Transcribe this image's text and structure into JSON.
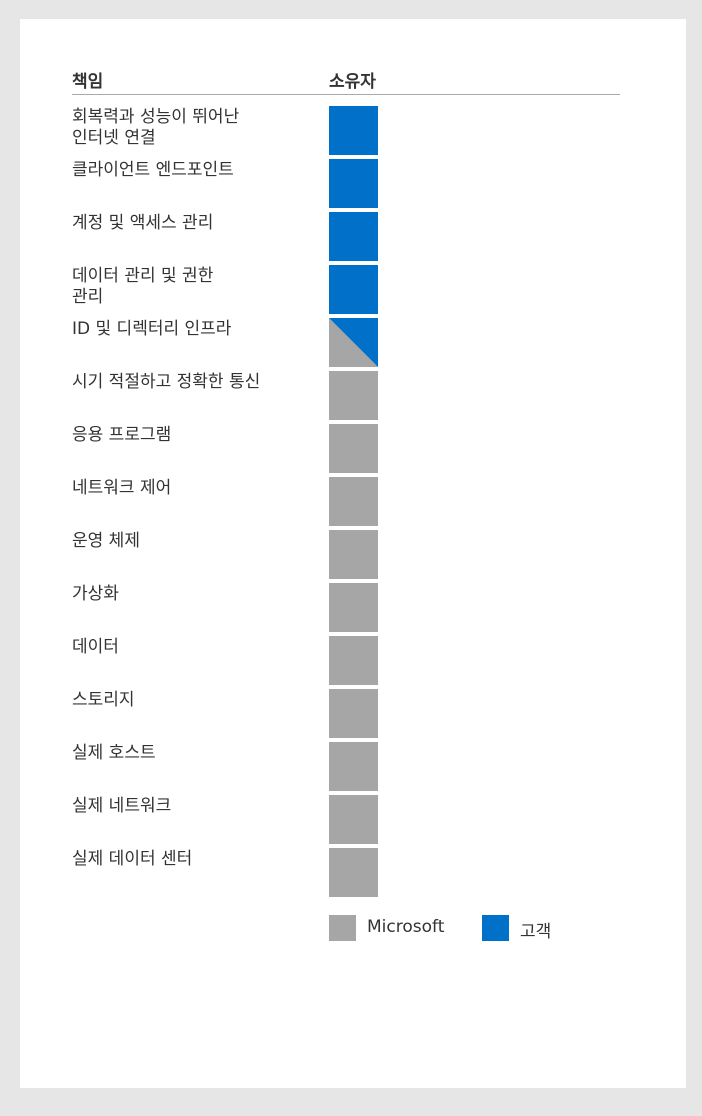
{
  "header": {
    "responsibility": "책임",
    "owner": "소유자"
  },
  "colors": {
    "microsoft": "#a6a6a6",
    "customer": "#0070c8"
  },
  "rows": [
    {
      "label": "회복력과 성능이 뛰어난\n인터넷 연결",
      "owner": "customer"
    },
    {
      "label": "클라이언트 엔드포인트",
      "owner": "customer"
    },
    {
      "label": "계정 및 액세스 관리",
      "owner": "customer"
    },
    {
      "label": "데이터 관리 및 권한\n관리",
      "owner": "customer"
    },
    {
      "label": "ID 및 디렉터리 인프라",
      "owner": "shared"
    },
    {
      "label": "시기 적절하고 정확한 통신",
      "owner": "microsoft"
    },
    {
      "label": "응용 프로그램",
      "owner": "microsoft"
    },
    {
      "label": "네트워크 제어",
      "owner": "microsoft"
    },
    {
      "label": "운영 체제",
      "owner": "microsoft"
    },
    {
      "label": "가상화",
      "owner": "microsoft"
    },
    {
      "label": "데이터",
      "owner": "microsoft"
    },
    {
      "label": "스토리지",
      "owner": "microsoft"
    },
    {
      "label": "실제 호스트",
      "owner": "microsoft"
    },
    {
      "label": "실제 네트워크",
      "owner": "microsoft"
    },
    {
      "label": "실제 데이터 센터",
      "owner": "microsoft"
    }
  ],
  "legend": {
    "microsoft": "Microsoft",
    "customer": "고객"
  }
}
